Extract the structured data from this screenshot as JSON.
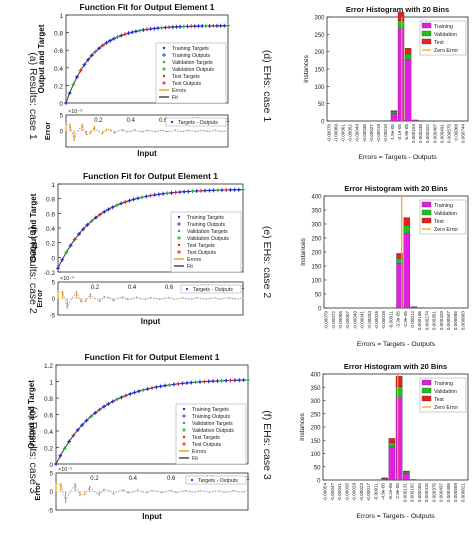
{
  "colors": {
    "panel_bg": "#ffffff",
    "axis": "#262626",
    "grid": "#d9d9d9",
    "fit_line": "#4a4a4a",
    "targets": "#1f2ad8",
    "outputs": "#3a3ad6",
    "validation": "#22b022",
    "test": "#e22222",
    "errors": "#f2a21b",
    "hist_training": "#e21ee2",
    "hist_validation": "#20c020",
    "hist_test": "#e62020",
    "zero_error": "#f2a21b"
  },
  "labels": {
    "fit_title": "Function Fit for Output Element 1",
    "fit_ylabel": "Output and Target",
    "fit_err_ylabel": "Error",
    "fit_err_xlabel": "Input",
    "fit_legend": [
      "Training Targets",
      "Training Outputs",
      "Validation Targets",
      "Validation Outputs",
      "Test Targets",
      "Test Outputs",
      "Errors",
      "Fit"
    ],
    "fit_err_legend": "Targets - Outputs",
    "hist_title": "Error Histogram with 20 Bins",
    "hist_ylabel": "Instances",
    "hist_xlabel": "Errors = Targets - Outputs",
    "hist_legend": [
      "Training",
      "Validation",
      "Test",
      "Zero Error"
    ],
    "err_exponent": "×10⁻⁵"
  },
  "captions": {
    "a": "(a) Results: case 1",
    "b": "(b) Results: case 2",
    "c": "(c) Results: case 3",
    "d": "(d) EHs: case 1",
    "e": "(e) EHs: case 2",
    "f": "(f) EHs: case 3"
  },
  "chart_data": [
    {
      "id": "a",
      "type": "line",
      "title": "Function Fit for Output Element 1",
      "ylabel": "Output and Target",
      "xlim": [
        0,
        1
      ],
      "ylim": [
        0,
        1
      ],
      "yticks": [
        0,
        0.2,
        0.4,
        0.6,
        0.8,
        1
      ],
      "y_max": 0.88,
      "k": 6.0,
      "error_panel": {
        "ylabel": "Error",
        "xlabel": "Input",
        "ylim": [
          -5,
          5
        ],
        "yticks": [
          0,
          5
        ],
        "xticks": [
          0.2,
          0.4,
          0.6,
          0.8,
          1
        ],
        "exponent_label": "×10⁻⁵",
        "legend": "Targets - Outputs"
      }
    },
    {
      "id": "b",
      "type": "line",
      "title": "Function Fit for Output Element 1",
      "ylabel": "Output and Target",
      "xlim": [
        0,
        1
      ],
      "ylim": [
        -0.2,
        1
      ],
      "yticks": [
        -0.2,
        0,
        0.2,
        0.4,
        0.6,
        0.8,
        1
      ],
      "y_max": 0.93,
      "k": 5.0,
      "error_panel": {
        "ylabel": "Error",
        "xlabel": "Input",
        "ylim": [
          -5,
          5
        ],
        "yticks": [
          -5,
          0,
          5
        ],
        "xticks": [
          0.2,
          0.4,
          0.6,
          0.8,
          1
        ],
        "exponent_label": "×10⁻⁵",
        "legend": "Targets - Outputs"
      }
    },
    {
      "id": "c",
      "type": "line",
      "title": "Function Fit for Output Element 1",
      "ylabel": "Output and Target",
      "xlim": [
        0,
        1
      ],
      "ylim": [
        0,
        1.2
      ],
      "yticks": [
        0,
        0.2,
        0.4,
        0.6,
        0.8,
        1,
        1.2
      ],
      "y_max": 1.03,
      "k": 4.5,
      "error_panel": {
        "ylabel": "Error",
        "xlabel": "Input",
        "ylim": [
          -5,
          5
        ],
        "yticks": [
          -5,
          0,
          5
        ],
        "xticks": [
          0.2,
          0.4,
          0.6,
          0.8,
          1
        ],
        "exponent_label": "×10⁻⁵",
        "legend": "Targets - Outputs"
      }
    },
    {
      "id": "d",
      "type": "bar",
      "title": "Error Histogram with 20 Bins",
      "ylabel": "Instances",
      "xlabel": "Errors = Targets - Outputs",
      "ylim": [
        0,
        300
      ],
      "yticks": [
        0,
        50,
        100,
        150,
        200,
        250,
        300
      ],
      "bin_labels": [
        "-0.00078",
        "-0.00069",
        "-0.00061",
        "-0.00052",
        "-0.00044",
        "-0.00036",
        "-0.00027",
        "-0.00018",
        "-0.00010",
        "-1.5e-05",
        "-3.1e-05",
        "6.9e-05",
        "0.000154",
        "0.000238",
        "0.000322",
        "0.000407",
        "0.000491",
        "0.000575",
        "0.00066",
        "0.000744"
      ],
      "series": [
        {
          "name": "Training",
          "values": [
            0,
            0,
            0,
            0,
            0,
            0,
            0,
            0,
            1,
            23,
            267,
            178,
            3,
            1,
            0,
            0,
            0,
            0,
            0,
            0
          ]
        },
        {
          "name": "Validation",
          "values": [
            0,
            0,
            0,
            0,
            0,
            0,
            0,
            0,
            0,
            4,
            22,
            15,
            0,
            0,
            0,
            0,
            0,
            0,
            0,
            0
          ]
        },
        {
          "name": "Test",
          "values": [
            0,
            0,
            0,
            0,
            0,
            0,
            0,
            0,
            0,
            3,
            25,
            17,
            0,
            0,
            0,
            0,
            0,
            0,
            0,
            0
          ]
        }
      ],
      "zero_error_bin": 10.6
    },
    {
      "id": "e",
      "type": "bar",
      "title": "Error Histogram with 20 Bins",
      "ylabel": "Instances",
      "xlabel": "Errors = Targets - Outputs",
      "ylim": [
        0,
        400
      ],
      "yticks": [
        0,
        50,
        100,
        150,
        200,
        250,
        300,
        350,
        400
      ],
      "bin_labels": [
        "-0.00079",
        "-0.00072",
        "-0.00065",
        "-0.00057",
        "-0.00049",
        "-0.00041",
        "-0.00034",
        "-0.00026",
        "-0.00018",
        "-0.00011",
        "-3.3e-05",
        "-2.9e-05",
        "0.00012",
        "0.000196",
        "0.000274",
        "0.000351",
        "0.000429",
        "0.000507",
        "0.000585",
        "0.000663"
      ],
      "series": [
        {
          "name": "Training",
          "values": [
            0,
            0,
            0,
            0,
            0,
            0,
            0,
            0,
            0,
            0,
            160,
            265,
            5,
            1,
            0,
            0,
            0,
            0,
            0,
            0
          ]
        },
        {
          "name": "Validation",
          "values": [
            0,
            0,
            0,
            0,
            0,
            0,
            0,
            0,
            0,
            0,
            17,
            30,
            0,
            0,
            0,
            0,
            0,
            0,
            0,
            0
          ]
        },
        {
          "name": "Test",
          "values": [
            0,
            0,
            0,
            0,
            0,
            0,
            0,
            0,
            0,
            0,
            18,
            28,
            0,
            0,
            0,
            0,
            0,
            0,
            0,
            0
          ]
        }
      ],
      "zero_error_bin": 10.8
    },
    {
      "id": "f",
      "type": "bar",
      "title": "Error Histogram with 20 Bins",
      "ylabel": "Instances",
      "xlabel": "Errors = Targets - Outputs",
      "ylim": [
        0,
        400
      ],
      "yticks": [
        0,
        50,
        100,
        150,
        200,
        250,
        300,
        350,
        400
      ],
      "bin_labels": [
        "-0.00054",
        "-0.00047",
        "-0.00041",
        "-0.00035",
        "-0.00029",
        "-0.00023",
        "-0.00017",
        "-0.00011",
        "-4.9e-05",
        "-6.2e-06",
        "2.9e-05",
        "0.000131",
        "0.000192",
        "0.000255",
        "0.000315",
        "0.000376",
        "0.000437",
        "0.000498",
        "0.000559",
        "0.000621"
      ],
      "series": [
        {
          "name": "Training",
          "values": [
            0,
            0,
            0,
            0,
            0,
            0,
            0,
            1,
            6,
            125,
            310,
            25,
            2,
            0,
            0,
            0,
            0,
            0,
            0,
            0
          ]
        },
        {
          "name": "Validation",
          "values": [
            0,
            0,
            0,
            0,
            0,
            0,
            0,
            0,
            1,
            15,
            42,
            5,
            0,
            0,
            0,
            0,
            0,
            0,
            0,
            0
          ]
        },
        {
          "name": "Test",
          "values": [
            0,
            0,
            0,
            0,
            0,
            0,
            0,
            0,
            1,
            17,
            40,
            4,
            0,
            0,
            0,
            0,
            0,
            0,
            0,
            0
          ]
        }
      ],
      "zero_error_bin": 10.3
    }
  ]
}
